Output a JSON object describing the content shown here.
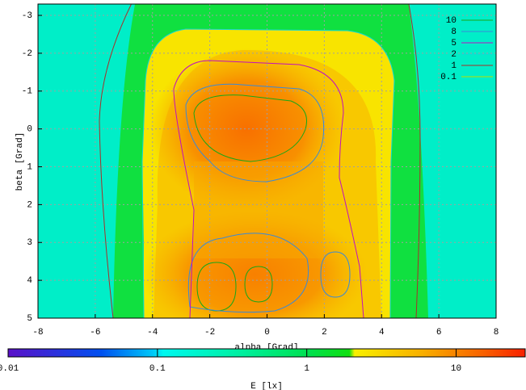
{
  "chart_data": {
    "type": "heatmap",
    "x_label": "alpha [Grad]",
    "y_label": "beta [Grad]",
    "xlim": [
      -8,
      8
    ],
    "xticks": [
      -8,
      -6,
      -4,
      -2,
      0,
      2,
      4,
      6,
      8
    ],
    "ylim": [
      5,
      -3.3
    ],
    "yticks": [
      -3,
      -2,
      -1,
      0,
      1,
      2,
      3,
      4,
      5
    ],
    "grid": true,
    "colorbar": {
      "label": "E [lx]",
      "lim": [
        0.01,
        29
      ],
      "ticks": [
        0.01,
        0.1,
        1,
        10
      ],
      "log_scale": true
    },
    "contours": {
      "legend_position": "top-right",
      "series": [
        {
          "name": "10",
          "color": "#18a818"
        },
        {
          "name": "8",
          "color": "#3a8ad8"
        },
        {
          "name": "5",
          "color": "#c010c0"
        },
        {
          "name": "2",
          "color": "#10d8d8"
        },
        {
          "name": "1",
          "color": "#a8302a"
        },
        {
          "name": "0.1",
          "color": "#b8e000"
        }
      ]
    }
  }
}
